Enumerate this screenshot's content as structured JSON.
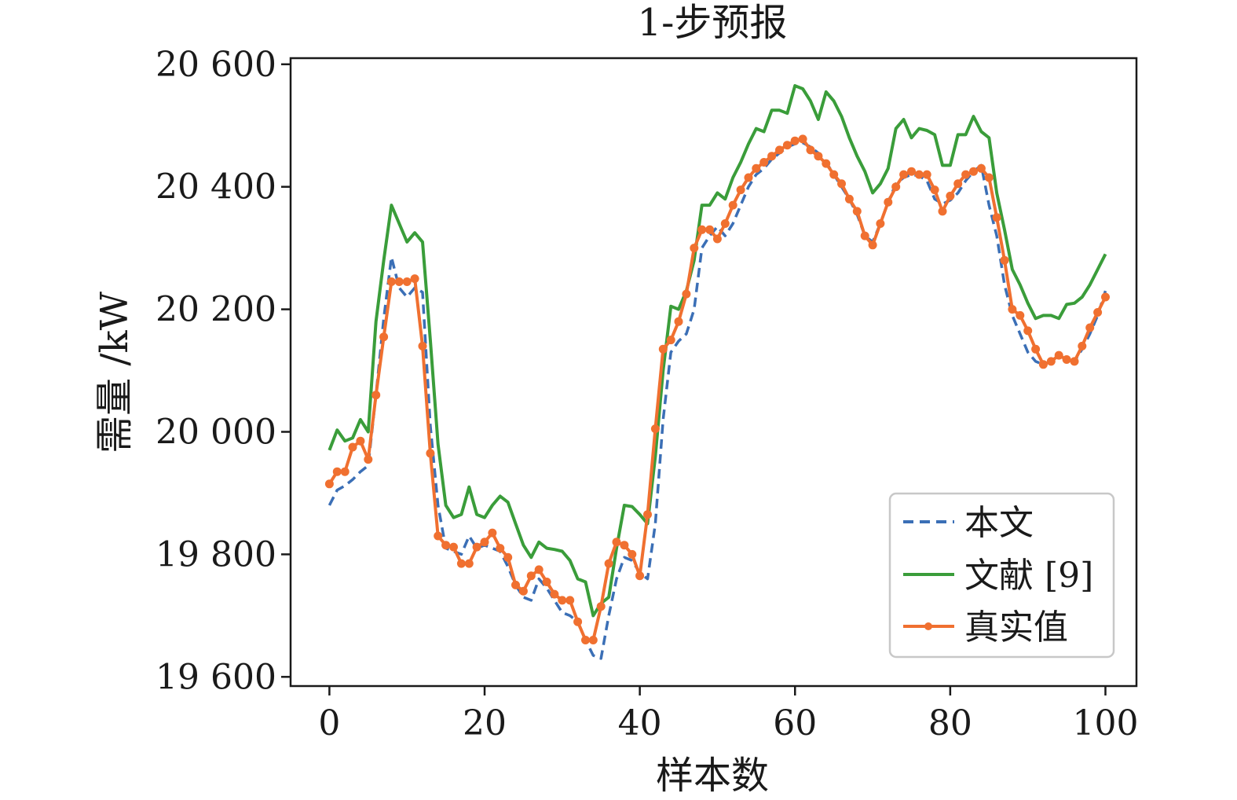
{
  "chart_data": {
    "type": "line",
    "title": "1-步预报",
    "xlabel": "样本数",
    "ylabel": "需量 /kW",
    "xlim": [
      -5,
      104
    ],
    "ylim": [
      19585,
      20610
    ],
    "xticks": [
      0,
      20,
      40,
      60,
      80,
      100
    ],
    "xtick_labels": [
      "0",
      "20",
      "40",
      "60",
      "80",
      "100"
    ],
    "yticks": [
      19600,
      19800,
      20000,
      20200,
      20400,
      20600
    ],
    "ytick_labels": [
      "19 600",
      "19 800",
      "20 000",
      "20 200",
      "20 400",
      "20 600"
    ],
    "grid": false,
    "legend_position": "bottom-right",
    "colors": {
      "bw": "#3b6fb6",
      "lit": "#3a9d3a",
      "actual": "#f07030"
    },
    "series": [
      {
        "name": "本文",
        "style": "dashed",
        "color": "#3b6fb6",
        "values": [
          19880,
          19905,
          19912,
          19922,
          19935,
          19945,
          20060,
          20185,
          20285,
          20235,
          20220,
          20235,
          20228,
          20010,
          19880,
          19810,
          19805,
          19800,
          19830,
          19810,
          19815,
          19810,
          19805,
          19780,
          19750,
          19730,
          19725,
          19760,
          19745,
          19725,
          19705,
          19700,
          19690,
          19660,
          19635,
          19630,
          19700,
          19760,
          19795,
          19790,
          19770,
          19760,
          19850,
          20020,
          20130,
          20148,
          20160,
          20200,
          20300,
          20320,
          20335,
          20320,
          20340,
          20370,
          20400,
          20420,
          20430,
          20445,
          20455,
          20465,
          20470,
          20472,
          20465,
          20455,
          20440,
          20420,
          20400,
          20380,
          20355,
          20320,
          20310,
          20340,
          20375,
          20405,
          20415,
          20420,
          20418,
          20410,
          20380,
          20372,
          20378,
          20390,
          20410,
          20425,
          20435,
          20370,
          20320,
          20240,
          20190,
          20160,
          20130,
          20115,
          20110,
          20115,
          20125,
          20118,
          20115,
          20135,
          20160,
          20190,
          20230
        ]
      },
      {
        "name": "文献 [9]",
        "style": "solid",
        "color": "#3a9d3a",
        "values": [
          19970,
          20003,
          19985,
          19990,
          20020,
          20000,
          20180,
          20280,
          20370,
          20340,
          20310,
          20325,
          20310,
          20150,
          19980,
          19880,
          19860,
          19865,
          19910,
          19865,
          19860,
          19880,
          19895,
          19885,
          19850,
          19815,
          19795,
          19820,
          19810,
          19808,
          19805,
          19790,
          19760,
          19755,
          19700,
          19720,
          19730,
          19810,
          19880,
          19878,
          19865,
          19850,
          19960,
          20100,
          20205,
          20200,
          20230,
          20280,
          20370,
          20370,
          20390,
          20380,
          20415,
          20440,
          20470,
          20495,
          20490,
          20525,
          20525,
          20520,
          20565,
          20560,
          20540,
          20510,
          20555,
          20540,
          20515,
          20480,
          20450,
          20425,
          20390,
          20405,
          20430,
          20495,
          20510,
          20480,
          20495,
          20492,
          20485,
          20435,
          20435,
          20485,
          20485,
          20515,
          20490,
          20480,
          20390,
          20330,
          20265,
          20240,
          20210,
          20185,
          20190,
          20190,
          20185,
          20208,
          20210,
          20220,
          20240,
          20265,
          20290
        ]
      },
      {
        "name": "真实值",
        "style": "solid-markers",
        "color": "#f07030",
        "values": [
          19915,
          19935,
          19935,
          19975,
          19985,
          19955,
          20060,
          20155,
          20245,
          20245,
          20245,
          20250,
          20140,
          19965,
          19830,
          19815,
          19812,
          19785,
          19785,
          19812,
          19820,
          19835,
          19810,
          19795,
          19750,
          19740,
          19765,
          19775,
          19755,
          19735,
          19725,
          19725,
          19690,
          19660,
          19660,
          19715,
          19785,
          19820,
          19815,
          19800,
          19765,
          19865,
          20005,
          20135,
          20150,
          20180,
          20225,
          20300,
          20330,
          20330,
          20315,
          20340,
          20370,
          20395,
          20415,
          20430,
          20440,
          20450,
          20460,
          20468,
          20475,
          20478,
          20460,
          20450,
          20438,
          20420,
          20405,
          20380,
          20360,
          20320,
          20305,
          20340,
          20375,
          20400,
          20420,
          20425,
          20420,
          20420,
          20395,
          20360,
          20385,
          20405,
          20420,
          20425,
          20430,
          20415,
          20350,
          20280,
          20200,
          20190,
          20165,
          20135,
          20110,
          20115,
          20125,
          20118,
          20115,
          20140,
          20170,
          20195,
          20220
        ]
      }
    ]
  }
}
